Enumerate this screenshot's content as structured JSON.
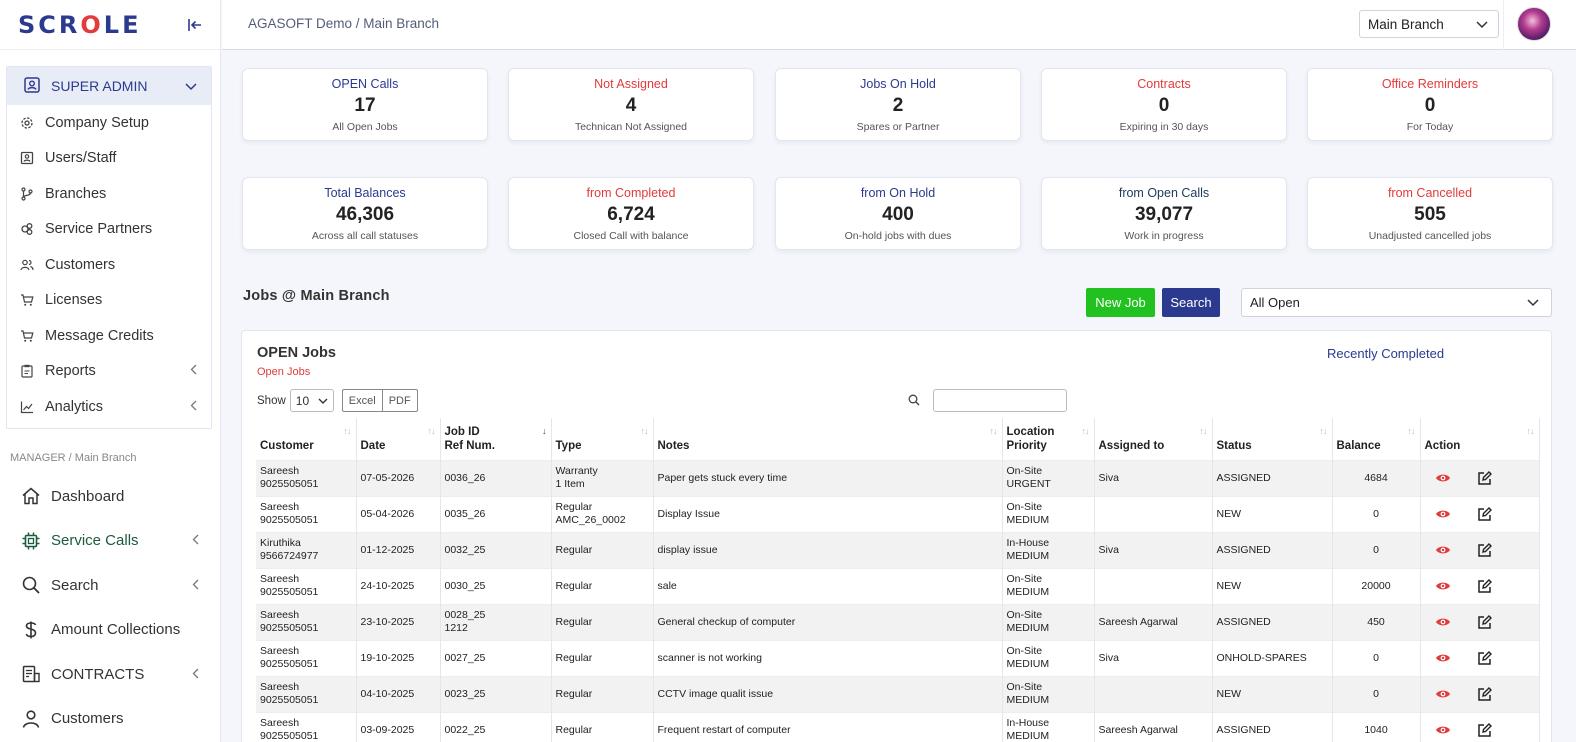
{
  "app": {
    "logo_pre": "SCR",
    "logo_o": "O",
    "logo_post": "LE"
  },
  "sidebar": {
    "admin_label": "SUPER ADMIN",
    "admin_items": [
      {
        "label": "Company Setup",
        "icon": "gear-icon"
      },
      {
        "label": "Users/Staff",
        "icon": "id-card-icon"
      },
      {
        "label": "Branches",
        "icon": "branch-icon"
      },
      {
        "label": "Service Partners",
        "icon": "partners-icon"
      },
      {
        "label": "Customers",
        "icon": "users-icon"
      },
      {
        "label": "Licenses",
        "icon": "cart-icon"
      },
      {
        "label": "Message Credits",
        "icon": "cart-icon"
      },
      {
        "label": "Reports",
        "icon": "clipboard-icon"
      },
      {
        "label": "Analytics",
        "icon": "chart-icon"
      }
    ],
    "section_label": "MANAGER / Main Branch",
    "nav_items": [
      {
        "label": "Dashboard",
        "icon": "home-icon"
      },
      {
        "label": "Service Calls",
        "icon": "chip-icon"
      },
      {
        "label": "Search",
        "icon": "search-icon"
      },
      {
        "label": "Amount Collections",
        "icon": "dollar-icon"
      },
      {
        "label": "CONTRACTS",
        "icon": "contract-icon"
      },
      {
        "label": "Customers",
        "icon": "person-icon"
      }
    ]
  },
  "topbar": {
    "breadcrumb": "AGASOFT Demo / Main Branch",
    "branch": "Main Branch"
  },
  "cards_row1": [
    {
      "title": "OPEN Calls",
      "value": "17",
      "sub": "All Open Jobs",
      "color": "#2b3a8f"
    },
    {
      "title": "Not Assigned",
      "value": "4",
      "sub": "Technican Not Assigned",
      "color": "#e23b3b"
    },
    {
      "title": "Jobs On Hold",
      "value": "2",
      "sub": "Spares or Partner",
      "color": "#2b3a8f"
    },
    {
      "title": "Contracts",
      "value": "0",
      "sub": "Expiring in 30 days",
      "color": "#e23b3b"
    },
    {
      "title": "Office Reminders",
      "value": "0",
      "sub": "For Today",
      "color": "#e23b3b"
    }
  ],
  "cards_row2": [
    {
      "title": "Total Balances",
      "value": "46,306",
      "sub": "Across all call statuses",
      "color": "#2b3a8f"
    },
    {
      "title": "from Completed",
      "value": "6,724",
      "sub": "Closed Call with balance",
      "color": "#e23b3b"
    },
    {
      "title": "from On Hold",
      "value": "400",
      "sub": "On-hold jobs with dues",
      "color": "#2b3a8f"
    },
    {
      "title": "from Open Calls",
      "value": "39,077",
      "sub": "Work in progress",
      "color": "#1d3a5a"
    },
    {
      "title": "from Cancelled",
      "value": "505",
      "sub": "Unadjusted cancelled jobs",
      "color": "#e23b3b"
    }
  ],
  "jobs": {
    "title": "Jobs @ Main Branch",
    "new_job": "New Job",
    "search": "Search",
    "filter": "All Open",
    "panel_title": "OPEN Jobs",
    "panel_sub": "Open Jobs",
    "recent_link": "Recently Completed",
    "show_label": "Show",
    "show_value": "10",
    "excel": "Excel",
    "pdf": "PDF",
    "columns": [
      "Customer",
      "Date",
      "Job ID",
      "Ref Num.",
      "Type",
      "Notes",
      "Location",
      "Priority",
      "Assigned to",
      "Status",
      "Balance",
      "Action"
    ],
    "rows": [
      {
        "cust": "Sareesh",
        "phone": "9025505051",
        "date": "07-05-2026",
        "jobid": "0036_26",
        "ref": "",
        "type": "Warranty",
        "type2": "1 Item",
        "notes": "Paper gets stuck every time",
        "loc": "On-Site",
        "prio": "URGENT",
        "assigned": "Siva",
        "status": "ASSIGNED",
        "balance": "4684"
      },
      {
        "cust": "Sareesh",
        "phone": "9025505051",
        "date": "05-04-2026",
        "jobid": "0035_26",
        "ref": "",
        "type": "Regular",
        "type2": "AMC_26_0002",
        "notes": "Display Issue",
        "loc": "On-Site",
        "prio": "MEDIUM",
        "assigned": "",
        "status": "NEW",
        "balance": "0"
      },
      {
        "cust": "Kiruthika",
        "phone": "9566724977",
        "date": "01-12-2025",
        "jobid": "0032_25",
        "ref": "",
        "type": "Regular",
        "type2": "",
        "notes": "display issue",
        "loc": "In-House",
        "prio": "MEDIUM",
        "assigned": "Siva",
        "status": "ASSIGNED",
        "balance": "0"
      },
      {
        "cust": "Sareesh",
        "phone": "9025505051",
        "date": "24-10-2025",
        "jobid": "0030_25",
        "ref": "",
        "type": "Regular",
        "type2": "",
        "notes": "sale",
        "loc": "On-Site",
        "prio": "MEDIUM",
        "assigned": "",
        "status": "NEW",
        "balance": "20000"
      },
      {
        "cust": "Sareesh",
        "phone": "9025505051",
        "date": "23-10-2025",
        "jobid": "0028_25",
        "ref": "1212",
        "type": "Regular",
        "type2": "",
        "notes": "General checkup of computer",
        "loc": "On-Site",
        "prio": "MEDIUM",
        "assigned": "Sareesh Agarwal",
        "status": "ASSIGNED",
        "balance": "450"
      },
      {
        "cust": "Sareesh",
        "phone": "9025505051",
        "date": "19-10-2025",
        "jobid": "0027_25",
        "ref": "",
        "type": "Regular",
        "type2": "",
        "notes": "scanner is not working",
        "loc": "On-Site",
        "prio": "MEDIUM",
        "assigned": "Siva",
        "status": "ONHOLD-SPARES",
        "balance": "0"
      },
      {
        "cust": "Sareesh",
        "phone": "9025505051",
        "date": "04-10-2025",
        "jobid": "0023_25",
        "ref": "",
        "type": "Regular",
        "type2": "",
        "notes": "CCTV image qualit issue",
        "loc": "On-Site",
        "prio": "MEDIUM",
        "assigned": "",
        "status": "NEW",
        "balance": "0"
      },
      {
        "cust": "Sareesh",
        "phone": "9025505051",
        "date": "03-09-2025",
        "jobid": "0022_25",
        "ref": "",
        "type": "Regular",
        "type2": "",
        "notes": "Frequent restart of computer",
        "loc": "In-House",
        "prio": "MEDIUM",
        "assigned": "Sareesh Agarwal",
        "status": "ASSIGNED",
        "balance": "1040"
      }
    ]
  }
}
